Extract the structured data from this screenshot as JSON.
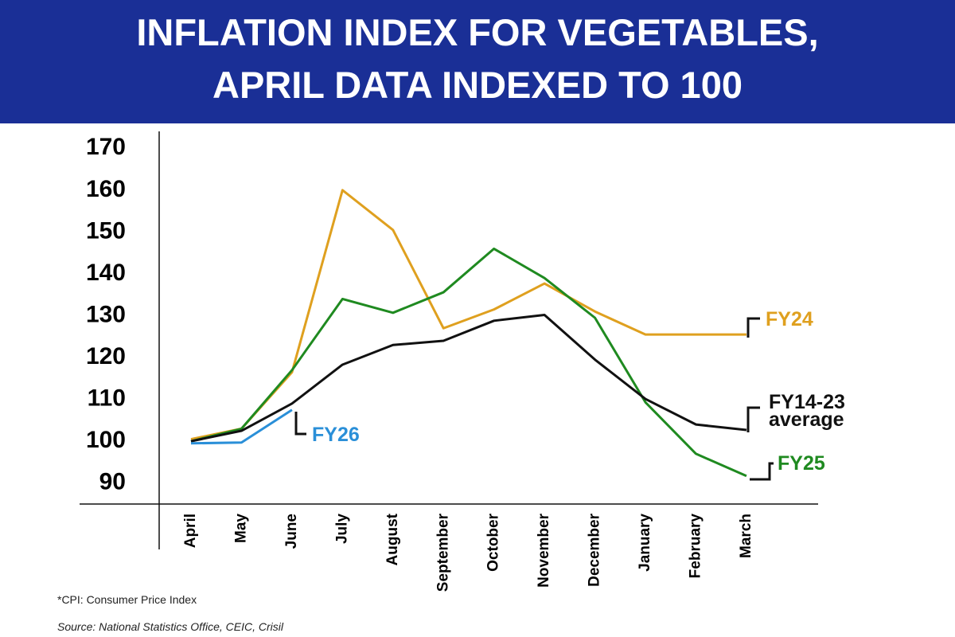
{
  "chart_data": {
    "type": "line",
    "title": "INFLATION INDEX FOR VEGETABLES, APRIL DATA INDEXED TO 100",
    "categories": [
      "April",
      "May",
      "June",
      "July",
      "August",
      "September",
      "October",
      "November",
      "December",
      "January",
      "February",
      "March"
    ],
    "series": [
      {
        "name": "FY24",
        "color": "#dfa01f",
        "values": [
          100.5,
          103,
          116.5,
          160,
          150.5,
          127,
          131.5,
          137.7,
          131,
          125.5,
          125.5,
          125.5
        ]
      },
      {
        "name": "FY25",
        "color": "#1f8a20",
        "values": [
          100,
          103,
          117,
          134,
          130.7,
          135.6,
          146,
          139,
          129.5,
          109.3,
          97,
          91.7
        ]
      },
      {
        "name": "FY14-23 average",
        "color": "#111111",
        "values": [
          100,
          102.5,
          109,
          118.3,
          123,
          124,
          128.8,
          130.2,
          119.5,
          110.1,
          104,
          102.7
        ]
      },
      {
        "name": "FY26",
        "color": "#2a8fd8",
        "values": [
          99.5,
          99.7,
          107.5,
          null,
          null,
          null,
          null,
          null,
          null,
          null,
          null,
          null
        ]
      }
    ],
    "ylim": [
      85,
      175
    ],
    "yticks": [
      90,
      100,
      110,
      120,
      130,
      140,
      150,
      160,
      170
    ],
    "notes": [
      "*CPI: Consumer Price Index",
      "Source: National Statistics Office, CEIC, Crisil"
    ]
  }
}
